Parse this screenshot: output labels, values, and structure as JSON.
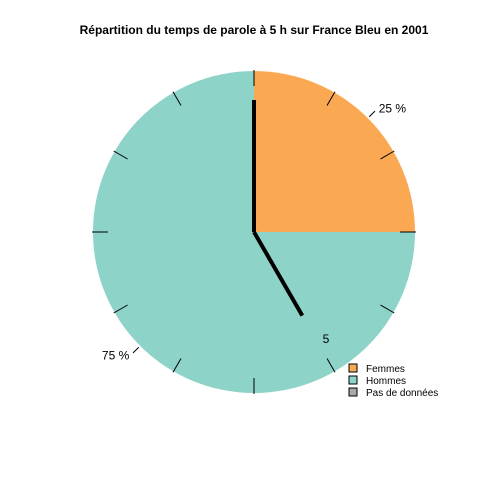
{
  "chart_data": {
    "type": "pie",
    "title": "Répartition du temps de parole à 5 h sur France Bleu en 2001",
    "slices": [
      {
        "label": "Femmes",
        "value": 25,
        "percent_label": "25 %",
        "color": "#fba852"
      },
      {
        "label": "Hommes",
        "value": 75,
        "percent_label": "75 %",
        "color": "#8dd3c7"
      }
    ],
    "legend": {
      "position": "bottom-right",
      "items": [
        {
          "label": "Femmes",
          "color": "#fba852"
        },
        {
          "label": "Hommes",
          "color": "#8dd3c7"
        },
        {
          "label": "Pas de données",
          "color": "#a9a9a9"
        }
      ]
    },
    "clock": {
      "hour": 5,
      "hour_label": "5",
      "ticks": 12,
      "hand_color": "#000000"
    }
  }
}
